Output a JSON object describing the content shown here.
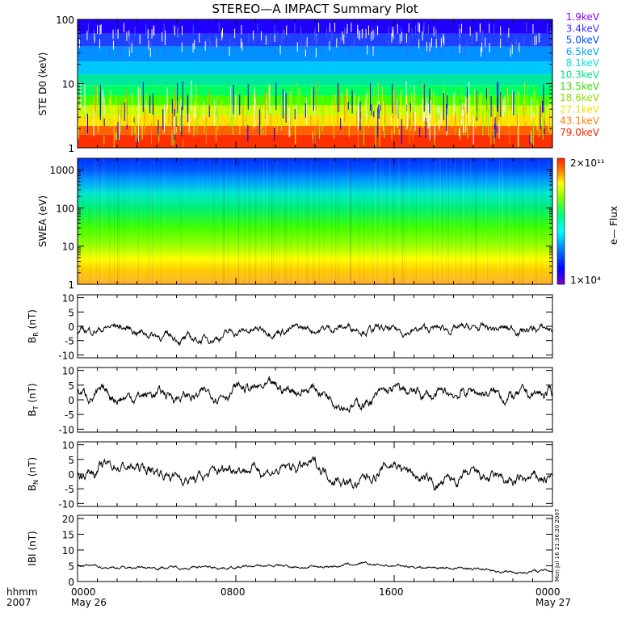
{
  "title": "STEREO—A IMPACT Summary Plot",
  "footer": {
    "time_format": "hhmm",
    "year": "2007",
    "ticks": [
      "0000",
      "0800",
      "1600",
      "0000"
    ],
    "start_date": "May 26",
    "end_date": "May 27"
  },
  "timestamp": "Mon Jul 16 21:36:20 2007",
  "colors": {
    "panel_border": "#000000",
    "trace": "#000000",
    "colorbar": [
      "#7b00c8",
      "#0000ff",
      "#0080ff",
      "#00ffff",
      "#00ff80",
      "#80ff00",
      "#ffff00",
      "#ff8000",
      "#ff2000"
    ]
  },
  "chart_data": [
    {
      "type": "heatmap",
      "panel": "ste",
      "ylabel": "STE D0 (keV)",
      "yscale": "log",
      "ylim": [
        1,
        100
      ],
      "y_ticks": [
        "1",
        "10",
        "100"
      ],
      "channels": [
        {
          "label": "1.9keV",
          "color": "#8b00ff"
        },
        {
          "label": "3.4keV",
          "color": "#4030ff"
        },
        {
          "label": "5.0keV",
          "color": "#0050ff"
        },
        {
          "label": "6.5keV",
          "color": "#00a8ff"
        },
        {
          "label": "8.1keV",
          "color": "#00e0e0"
        },
        {
          "label": "10.3keV",
          "color": "#00e080"
        },
        {
          "label": "13.5keV",
          "color": "#30e000"
        },
        {
          "label": "18.6keV",
          "color": "#90e000"
        },
        {
          "label": "27.1keV",
          "color": "#f0e000"
        },
        {
          "label": "43.1keV",
          "color": "#ff8000"
        },
        {
          "label": "79.0keV",
          "color": "#ff2000"
        }
      ]
    },
    {
      "type": "heatmap",
      "panel": "swea",
      "ylabel": "SWEA (eV)",
      "yscale": "log",
      "ylim": [
        1,
        2000
      ],
      "y_ticks": [
        "1",
        "10",
        "100",
        "1000"
      ],
      "colorbar": {
        "label": "e— Flux",
        "max_label": "2×10¹¹",
        "min_label": "1×10⁴"
      }
    },
    {
      "type": "line",
      "panel": "br",
      "ylabel": "B_R (nT)",
      "ylim": [
        -11,
        11
      ],
      "y_ticks": [
        "10",
        "5",
        "0",
        "-5",
        "-10"
      ],
      "x": [
        0,
        2,
        4,
        6,
        8,
        10,
        12,
        14,
        16,
        18,
        20,
        22,
        24
      ],
      "values": [
        -2,
        0,
        -3,
        -5,
        -2,
        -1,
        -1,
        0,
        -2,
        -1,
        -1,
        -1,
        -1
      ]
    },
    {
      "type": "line",
      "panel": "bt",
      "ylabel": "B_T (nT)",
      "ylim": [
        -11,
        11
      ],
      "y_ticks": [
        "10",
        "5",
        "0",
        "-5",
        "-10"
      ],
      "x": [
        0,
        2,
        4,
        6,
        8,
        10,
        12,
        14,
        16,
        18,
        20,
        22,
        24
      ],
      "values": [
        2,
        1,
        2,
        1,
        4,
        3,
        4,
        -2,
        3,
        1,
        3,
        1,
        2
      ]
    },
    {
      "type": "line",
      "panel": "bn",
      "ylabel": "B_N (nT)",
      "ylim": [
        -11,
        11
      ],
      "y_ticks": [
        "10",
        "5",
        "0",
        "-5",
        "-10"
      ],
      "x": [
        0,
        2,
        4,
        6,
        8,
        10,
        12,
        14,
        16,
        18,
        20,
        22,
        24
      ],
      "values": [
        0,
        3,
        1,
        -2,
        3,
        1,
        3,
        -4,
        4,
        -4,
        -1,
        -3,
        -1
      ]
    },
    {
      "type": "line",
      "panel": "bmag",
      "ylabel": "IBI (nT)",
      "ylim": [
        0,
        21
      ],
      "y_ticks": [
        "20",
        "15",
        "10",
        "5",
        "0"
      ],
      "x": [
        0,
        2,
        4,
        6,
        8,
        10,
        12,
        14,
        16,
        18,
        20,
        22,
        24
      ],
      "values": [
        5,
        4.5,
        4.5,
        4.5,
        4.5,
        5,
        4.5,
        5.5,
        5,
        4.5,
        4,
        3,
        3.5
      ]
    }
  ]
}
